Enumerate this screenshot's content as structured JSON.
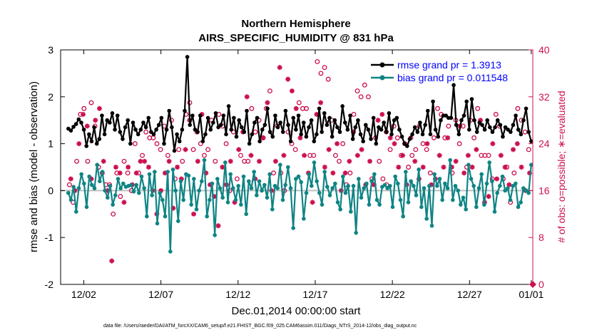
{
  "colors": {
    "rmse": "#000000",
    "bias": "#0f8484",
    "obs": "#cc0f50",
    "zero_line": "#bfbfbf",
    "legend_text": "#0000ff"
  },
  "chart_data": {
    "type": "line",
    "title": [
      "Northern Hemisphere",
      "AIRS_SPECIFIC_HUMIDITY @ 831 hPa"
    ],
    "xlabel": "Dec.01,2014 00:00:00 start",
    "ylabel": "rmse and bias (model - observation)",
    "ylabel_right": "# of obs: o=possible; ∗=evaluated",
    "xlim": [
      0.5,
      31.1
    ],
    "ylim": [
      -2,
      3
    ],
    "ylim_right": [
      0,
      40
    ],
    "xticks": [
      {
        "x": 2,
        "label": "12/02"
      },
      {
        "x": 7,
        "label": "12/07"
      },
      {
        "x": 12,
        "label": "12/12"
      },
      {
        "x": 17,
        "label": "12/17"
      },
      {
        "x": 22,
        "label": "12/22"
      },
      {
        "x": 27,
        "label": "12/27"
      },
      {
        "x": 31,
        "label": "01/01"
      }
    ],
    "yticks": [
      "-2",
      "-1",
      "0",
      "1",
      "2",
      "3"
    ],
    "yticks_right": [
      "0",
      "8",
      "16",
      "24",
      "32",
      "40"
    ],
    "legend": [
      {
        "name": "rmse",
        "label": "rmse grand pr = 1.3913"
      },
      {
        "name": "bias",
        "label": "bias grand pr = 0.011548"
      }
    ],
    "footnote": "data file: /Users/raeder/DAI/ATM_forcXX/CAM6_setup/f.e21.FHIST_BGC.f09_025.CAM6assim.011/Diags_NTrS_2014-12/obs_diag_output.nc",
    "series": [
      {
        "name": "rmse",
        "values": [
          1.32,
          1.28,
          1.36,
          1.42,
          1.52,
          1.45,
          1.3,
          0.95,
          1.2,
          1.05,
          1.35,
          1.0,
          1.1,
          1.6,
          1.2,
          1.5,
          1.45,
          1.65,
          1.3,
          1.6,
          1.25,
          1.1,
          1.35,
          1.5,
          1.0,
          1.45,
          1.3,
          1.2,
          1.3,
          1.45,
          1.35,
          1.55,
          1.25,
          1.2,
          1.3,
          1.4,
          1.55,
          1.0,
          1.3,
          1.7,
          1.35,
          0.85,
          1.2,
          1.05,
          1.3,
          1.7,
          2.85,
          1.4,
          1.6,
          1.3,
          1.25,
          1.6,
          1.05,
          1.2,
          1.55,
          1.3,
          1.45,
          1.65,
          1.35,
          1.4,
          1.6,
          1.2,
          1.8,
          1.3,
          1.55,
          1.15,
          1.5,
          1.35,
          1.25,
          1.7,
          1.0,
          1.2,
          1.45,
          1.55,
          1.05,
          1.3,
          1.4,
          1.75,
          1.25,
          1.15,
          1.6,
          1.35,
          1.45,
          1.25,
          1.7,
          1.4,
          1.05,
          1.55,
          1.3,
          1.6,
          1.2,
          1.45,
          1.15,
          1.35,
          1.5,
          1.05,
          1.2,
          1.75,
          1.25,
          1.65,
          1.4,
          1.55,
          1.15,
          1.5,
          1.35,
          1.25,
          1.8,
          1.45,
          1.3,
          1.6,
          1.1,
          1.35,
          1.5,
          1.2,
          1.05,
          1.4,
          1.3,
          1.1,
          1.55,
          1.0,
          1.35,
          1.3,
          1.45,
          1.25,
          1.65,
          1.2,
          1.5,
          1.55,
          1.3,
          1.15,
          1.0,
          0.95,
          1.1,
          1.2,
          1.35,
          1.25,
          1.45,
          1.2,
          1.4,
          1.7,
          1.2,
          1.9,
          1.3,
          1.15,
          1.5,
          1.6,
          1.6,
          1.55,
          1.55,
          2.25,
          1.4,
          1.2,
          1.5,
          1.6,
          1.9,
          1.3,
          1.95,
          1.5,
          1.25,
          1.45,
          1.4,
          1.3,
          1.5,
          1.35,
          1.25,
          1.35,
          1.5,
          1.4,
          1.15,
          1.35,
          1.3,
          1.25,
          1.4,
          1.6,
          1.3,
          1.2,
          1.5,
          1.75,
          1.25,
          1.05
        ]
      },
      {
        "name": "bias",
        "values": [
          -0.05,
          -0.2,
          0.08,
          -0.45,
          0.05,
          0.35,
          0.15,
          -0.35,
          0.3,
          0.12,
          0.05,
          0.55,
          0.2,
          0.4,
          0.0,
          -0.15,
          0.1,
          -0.3,
          -0.1,
          0.25,
          0.05,
          0.15,
          0.08,
          0.1,
          0.12,
          -0.02,
          0.12,
          -0.05,
          0.3,
          0.05,
          -0.55,
          0.35,
          -0.1,
          0.4,
          -0.7,
          -0.05,
          -0.2,
          -0.55,
          0.4,
          -1.3,
          0.45,
          0.0,
          -0.65,
          0.2,
          -0.2,
          0.35,
          0.32,
          -0.3,
          0.25,
          -0.4,
          0.0,
          0.2,
          0.65,
          -0.55,
          -0.2,
          0.15,
          -0.95,
          0.25,
          0.05,
          -0.15,
          0.6,
          -0.25,
          0.35,
          0.05,
          -0.2,
          0.1,
          -0.3,
          0.3,
          -0.5,
          0.2,
          0.05,
          0.4,
          -0.1,
          0.2,
          0.0,
          0.12,
          -0.15,
          0.35,
          -0.4,
          0.1,
          0.05,
          0.55,
          -0.2,
          0.12,
          0.5,
          0.05,
          -0.8,
          0.25,
          0.3,
          0.18,
          -0.6,
          -0.05,
          0.35,
          0.1,
          0.6,
          0.2,
          -0.05,
          -0.3,
          0.4,
          0.08,
          -0.1,
          0.05,
          0.15,
          -0.25,
          -0.4,
          0.3,
          -0.05,
          0.1,
          -0.45,
          0.1,
          -0.9,
          0.25,
          -0.15,
          0.05,
          0.15,
          -0.3,
          0.2,
          0.35,
          -0.2,
          -0.3,
          0.08,
          0.12,
          0.05,
          0.1,
          -0.35,
          0.3,
          0.15,
          -0.2,
          -0.55,
          0.4,
          -0.25,
          0.2,
          0.1,
          -0.1,
          0.45,
          -0.35,
          0.05,
          -0.6,
          0.1,
          -0.75,
          0.35,
          0.1,
          0.25,
          -0.2,
          0.15,
          0.05,
          0.65,
          -0.2,
          0.1,
          0.0,
          -0.3,
          -0.15,
          -0.4,
          0.55,
          0.25,
          0.1,
          -0.35,
          0.05,
          0.35,
          -0.3,
          0.15,
          0.6,
          0.2,
          -0.45,
          -0.05,
          0.1,
          0.3,
          0.0,
          0.05,
          -0.2,
          0.1,
          0.15,
          -0.35,
          -0.25,
          0.05,
          0.0,
          -0.05,
          0.55
        ]
      },
      {
        "name": "obs_possible",
        "values": [
          17,
          14,
          21,
          29,
          30,
          21,
          31,
          27,
          20,
          19,
          17,
          17,
          12,
          19,
          15,
          21,
          19,
          16,
          24,
          19,
          22,
          26,
          25,
          25,
          24,
          23,
          27,
          22,
          28,
          18,
          23,
          21,
          29,
          31,
          23,
          26,
          24,
          22,
          23,
          28,
          21,
          29,
          27,
          24,
          16,
          26,
          18,
          22,
          21,
          21,
          30,
          26,
          28,
          25,
          30,
          33,
          19,
          27,
          19,
          16,
          26,
          24,
          23,
          31,
          30,
          30,
          22,
          22,
          38,
          36,
          37,
          35,
          28,
          22,
          21,
          24,
          17,
          19,
          29,
          33,
          32,
          34,
          32,
          18,
          25,
          21,
          18,
          17,
          23,
          27,
          25,
          22,
          24,
          20,
          22,
          23,
          27,
          24,
          23,
          19,
          25,
          30,
          29,
          25,
          27,
          19,
          28,
          24,
          27,
          20,
          28,
          25,
          30,
          22,
          22,
          22,
          18,
          29,
          27,
          18,
          20,
          14,
          19,
          30,
          28,
          26,
          23
        ]
      },
      {
        "name": "obs_evaluated",
        "values": [
          18,
          16,
          24,
          29,
          27,
          18,
          28,
          30,
          21,
          16,
          4,
          20,
          19,
          14,
          20,
          17,
          19,
          21,
          21,
          20,
          16,
          12,
          16,
          19,
          21,
          13,
          20,
          18,
          23,
          28,
          12,
          21,
          29,
          19,
          17,
          15,
          10,
          20,
          17,
          21,
          14,
          23,
          26,
          32,
          22,
          18,
          21,
          25,
          31,
          16,
          21,
          37,
          22,
          35,
          33,
          30,
          25,
          22,
          19,
          14,
          29,
          31,
          20,
          23,
          19,
          24,
          16,
          19,
          21,
          26,
          22,
          23,
          17,
          21,
          17,
          28,
          29,
          26,
          25,
          24,
          20,
          22,
          17,
          25,
          21,
          18,
          20,
          24,
          17,
          18,
          22,
          20,
          25,
          20,
          21,
          27,
          19,
          22,
          20,
          23,
          28,
          14,
          15,
          24,
          18,
          22,
          20,
          17,
          23,
          24,
          20,
          16,
          19
        ]
      }
    ]
  }
}
